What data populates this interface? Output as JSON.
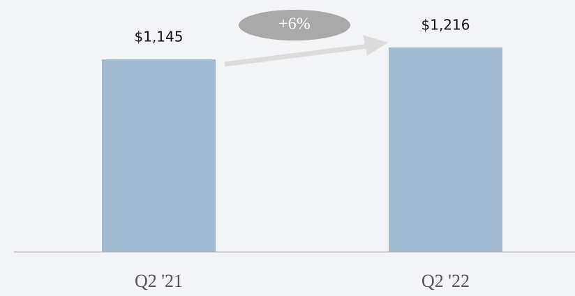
{
  "chart_data": {
    "type": "bar",
    "categories": [
      "Q2 '21",
      "Q2 '22"
    ],
    "values": [
      1145,
      1216
    ],
    "value_labels": [
      "$1,145",
      "$1,216"
    ],
    "color": "#a2b9cf",
    "annotation": "+6%"
  }
}
